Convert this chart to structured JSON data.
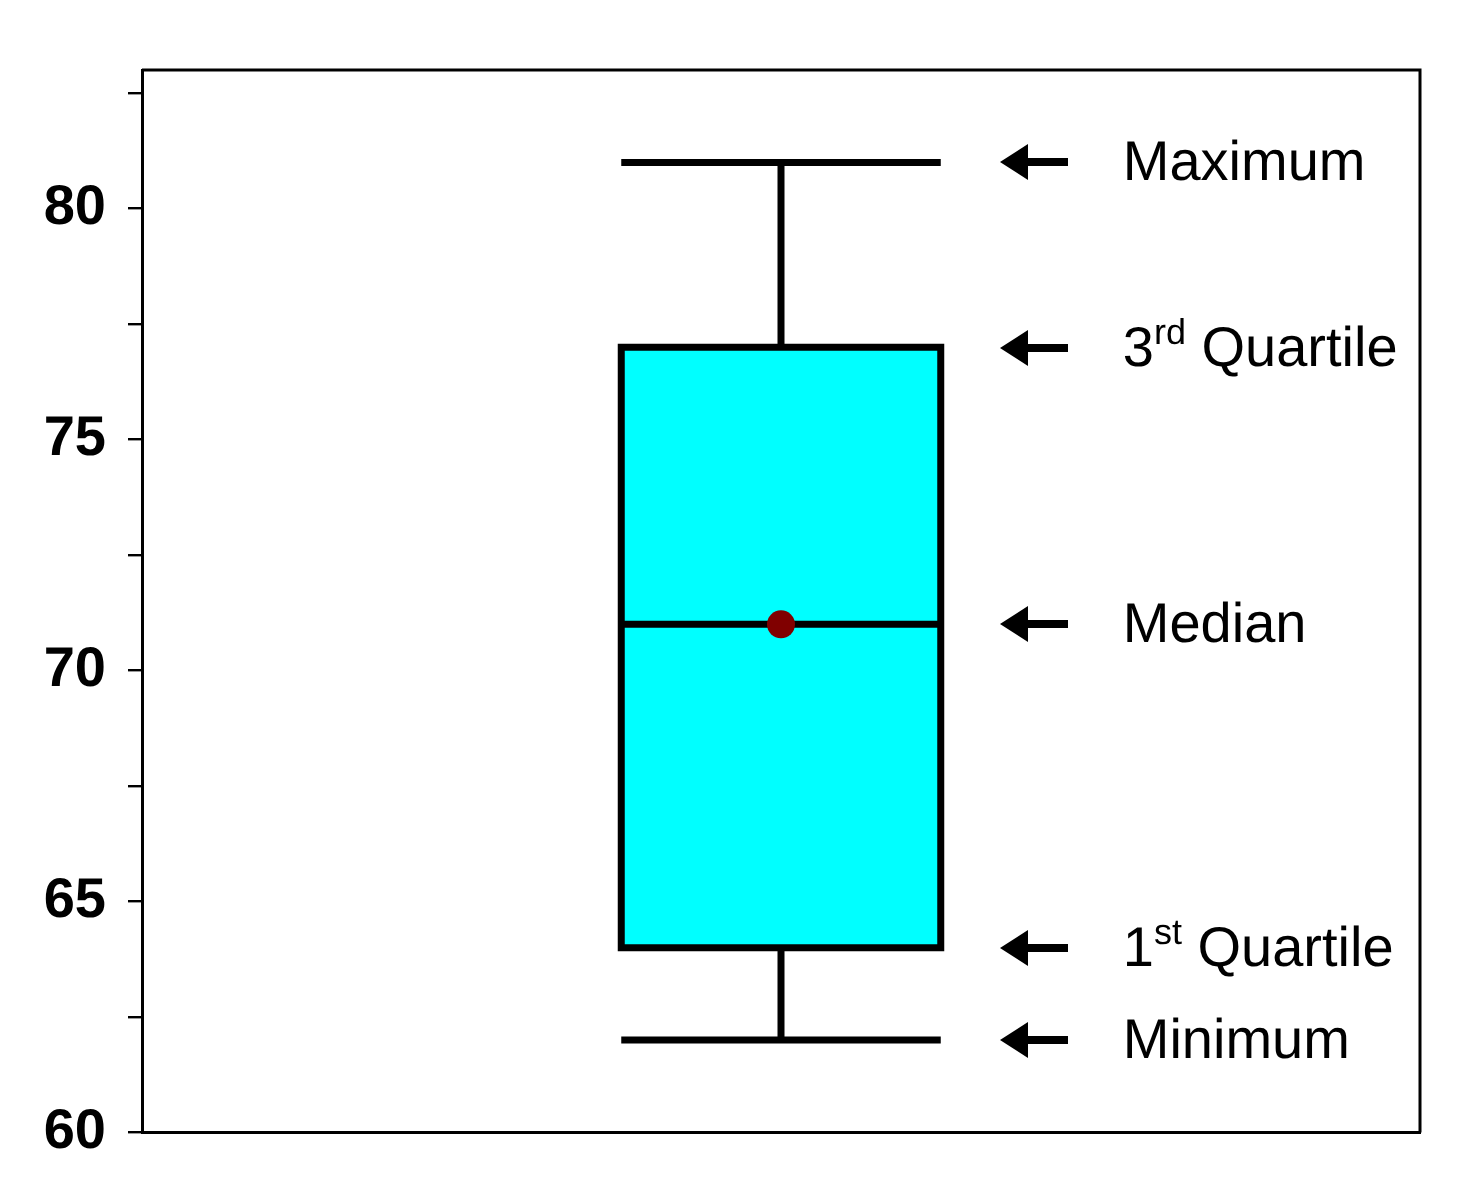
{
  "chart_data": {
    "type": "box",
    "categories": [
      null
    ],
    "color": "#00ffff",
    "boxes": [
      {
        "low": 62,
        "q1": 64,
        "median": 71,
        "q3": 77,
        "high": 81,
        "mean": 71
      }
    ],
    "ylim": [
      60,
      83
    ],
    "yticks": [
      60,
      {
        "value": 62.5,
        "label": null
      },
      65,
      {
        "value": 67.5,
        "label": null
      },
      70,
      {
        "value": 72.5,
        "label": null
      },
      75,
      {
        "value": 77.5,
        "label": null
      },
      80,
      {
        "value": 82.5,
        "label": null
      }
    ],
    "tick_labels": "y",
    "annotations": [
      "Maximum",
      "3$^{rd}$ Quartile",
      "Median",
      "1$^{st}$ Quartile",
      "Minimum"
    ]
  }
}
